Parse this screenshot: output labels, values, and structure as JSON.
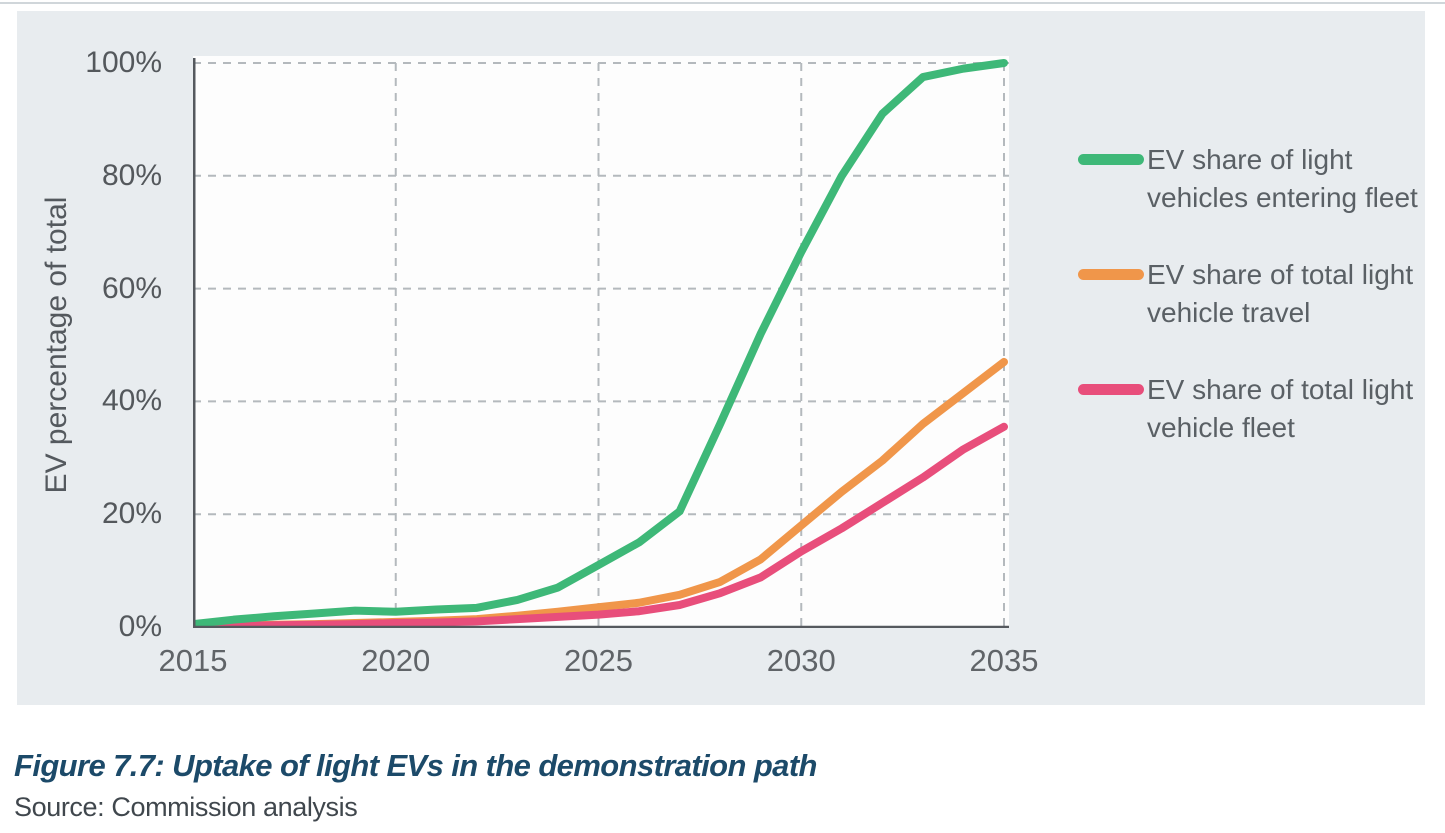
{
  "chart_data": {
    "type": "line",
    "title": "",
    "ylabel": "EV percentage of total",
    "xlabel": "",
    "xlim": [
      2015,
      2035
    ],
    "ylim": [
      0,
      100
    ],
    "grid": "dashed",
    "legend_position": "right",
    "x_ticks": [
      2015,
      2020,
      2025,
      2030,
      2035
    ],
    "x_tick_labels": [
      "2015",
      "2020",
      "2025",
      "2030",
      "2035"
    ],
    "y_ticks": [
      0,
      20,
      40,
      60,
      80,
      100
    ],
    "y_tick_labels": [
      "0%",
      "20%",
      "40%",
      "60%",
      "80%",
      "100%"
    ],
    "x": [
      2015,
      2016,
      2017,
      2018,
      2019,
      2020,
      2021,
      2022,
      2023,
      2024,
      2025,
      2026,
      2027,
      2028,
      2029,
      2030,
      2031,
      2032,
      2033,
      2034,
      2035
    ],
    "series": [
      {
        "name": "EV share of light vehicles entering fleet",
        "color": "#3eb878",
        "values": [
          0.5,
          1.3,
          1.9,
          2.4,
          2.9,
          2.7,
          3.1,
          3.4,
          4.8,
          7.0,
          11.0,
          15.0,
          20.5,
          36.0,
          52.0,
          66.5,
          80.0,
          91.0,
          97.5,
          99.0,
          100.0
        ]
      },
      {
        "name": "EV share of total light vehicle travel",
        "color": "#f0964a",
        "values": [
          0.1,
          0.2,
          0.4,
          0.5,
          0.7,
          0.9,
          1.1,
          1.4,
          2.0,
          2.7,
          3.5,
          4.3,
          5.7,
          8.0,
          12.0,
          18.0,
          24.0,
          29.5,
          36.0,
          41.5,
          47.0
        ]
      },
      {
        "name": "EV share of total light vehicle fleet",
        "color": "#e84e7b",
        "values": [
          0.1,
          0.2,
          0.3,
          0.4,
          0.5,
          0.7,
          0.8,
          1.0,
          1.4,
          1.8,
          2.2,
          2.8,
          3.9,
          6.0,
          8.8,
          13.4,
          17.5,
          22.0,
          26.5,
          31.5,
          35.5
        ]
      }
    ],
    "draw_order": [
      1,
      2,
      0
    ]
  },
  "style": {
    "panel_bg": "#e8ecef",
    "plot_bg": "#fdfdfd",
    "grid_color": "#b4b9bd",
    "axis_color": "#55595e",
    "line_width": 8
  },
  "caption": {
    "title": "Figure 7.7: Uptake of light EVs in the demonstration path",
    "source": "Source: Commission analysis"
  }
}
